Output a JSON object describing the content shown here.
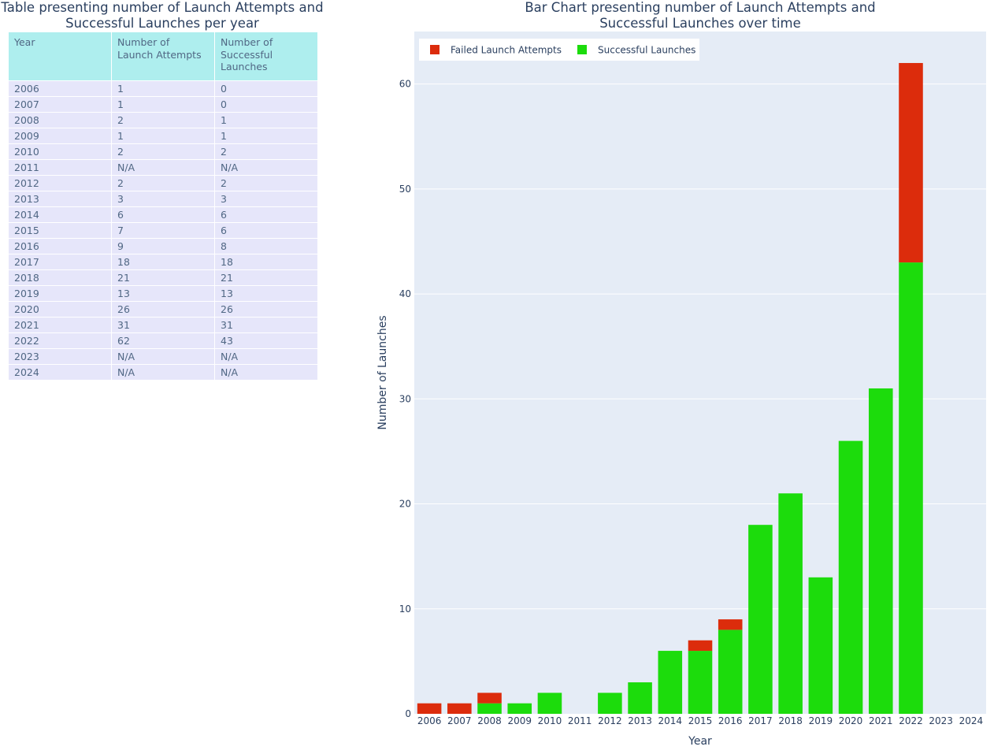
{
  "table": {
    "title_line1": "Table presenting number of Launch Attempts and",
    "title_line2": "Successful Launches per year",
    "headers": [
      "Year",
      "Number of Launch Attempts",
      "Number of Successful Launches"
    ],
    "rows": [
      [
        "2006",
        "1",
        "0"
      ],
      [
        "2007",
        "1",
        "0"
      ],
      [
        "2008",
        "2",
        "1"
      ],
      [
        "2009",
        "1",
        "1"
      ],
      [
        "2010",
        "2",
        "2"
      ],
      [
        "2011",
        "N/A",
        "N/A"
      ],
      [
        "2012",
        "2",
        "2"
      ],
      [
        "2013",
        "3",
        "3"
      ],
      [
        "2014",
        "6",
        "6"
      ],
      [
        "2015",
        "7",
        "6"
      ],
      [
        "2016",
        "9",
        "8"
      ],
      [
        "2017",
        "18",
        "18"
      ],
      [
        "2018",
        "21",
        "21"
      ],
      [
        "2019",
        "13",
        "13"
      ],
      [
        "2020",
        "26",
        "26"
      ],
      [
        "2021",
        "31",
        "31"
      ],
      [
        "2022",
        "62",
        "43"
      ],
      [
        "2023",
        "N/A",
        "N/A"
      ],
      [
        "2024",
        "N/A",
        "N/A"
      ]
    ]
  },
  "chart_data": {
    "type": "bar",
    "stacked": true,
    "title": "Bar Chart presenting number of Launch Attempts and Successful Launches over time",
    "title_line1": "Bar Chart presenting number of Launch Attempts and",
    "title_line2": "Successful Launches over time",
    "xlabel": "Year",
    "ylabel": "Number of Launches",
    "categories": [
      "2006",
      "2007",
      "2008",
      "2009",
      "2010",
      "2011",
      "2012",
      "2013",
      "2014",
      "2015",
      "2016",
      "2017",
      "2018",
      "2019",
      "2020",
      "2021",
      "2022",
      "2023",
      "2024"
    ],
    "series": [
      {
        "name": "Successful Launches",
        "color": "#1cdc0c",
        "values": [
          0,
          0,
          1,
          1,
          2,
          0,
          2,
          3,
          6,
          6,
          8,
          18,
          21,
          13,
          26,
          31,
          43,
          0,
          0
        ]
      },
      {
        "name": "Failed Launch Attempts",
        "color": "#dc2c0c",
        "values": [
          1,
          1,
          1,
          0,
          0,
          0,
          0,
          0,
          0,
          1,
          1,
          0,
          0,
          0,
          0,
          0,
          19,
          0,
          0
        ]
      }
    ],
    "legend_order": [
      "Failed Launch Attempts",
      "Successful Launches"
    ],
    "ylim": [
      0,
      65
    ],
    "yticks": [
      0,
      10,
      20,
      30,
      40,
      50,
      60
    ],
    "grid": true,
    "legend_position": "top-left",
    "plot_background": "#e5ecf6"
  }
}
